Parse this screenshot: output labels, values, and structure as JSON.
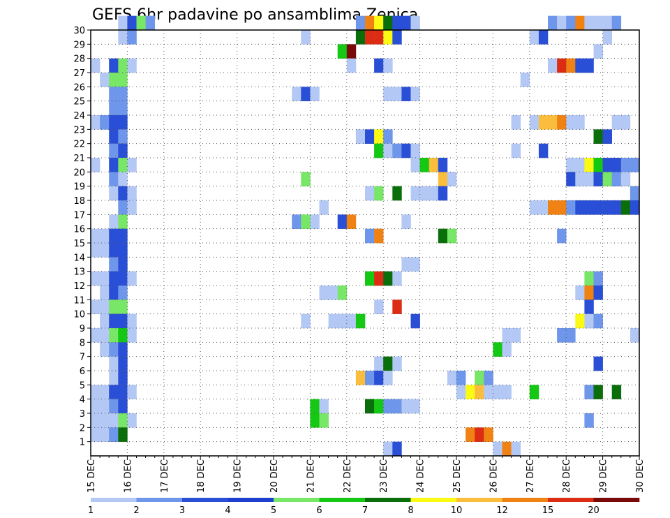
{
  "chart_data": {
    "type": "heatmap",
    "title": "GEFS 6hr padavine po ansamblima Zenica",
    "xlabel": "",
    "ylabel": "",
    "x_ticks": [
      "15 DEC",
      "16 DEC",
      "17 DEC",
      "18 DEC",
      "19 DEC",
      "20 DEC",
      "21 DEC",
      "22 DEC",
      "23 DEC",
      "24 DEC",
      "25 DEC",
      "26 DEC",
      "27 DEC",
      "28 DEC",
      "29 DEC",
      "30 DEC"
    ],
    "y_ticks": [
      "1",
      "2",
      "3",
      "4",
      "5",
      "6",
      "7",
      "8",
      "9",
      "10",
      "11",
      "12",
      "13",
      "14",
      "15",
      "16",
      "17",
      "18",
      "19",
      "20",
      "21",
      "22",
      "23",
      "24",
      "25",
      "26",
      "27",
      "28",
      "29",
      "30"
    ],
    "time_steps_per_day": 4,
    "x_range_days": [
      0,
      15
    ],
    "y_range": [
      0,
      30
    ],
    "grid": true,
    "colorbar": {
      "placement": "bottom",
      "labels": [
        "1",
        "2",
        "3",
        "4",
        "5",
        "6",
        "7",
        "8",
        "10",
        "12",
        "15",
        "20"
      ],
      "colors": [
        "#b4c8f5",
        "#6e96eb",
        "#2a4fd7",
        "#1e3fd0",
        "#78e666",
        "#14c814",
        "#0a6e0a",
        "#fafa14",
        "#fabe3c",
        "#f08214",
        "#dc2d14",
        "#7a0a0a"
      ]
    },
    "cells": [
      [
        30,
        3,
        0
      ],
      [
        30,
        4,
        2
      ],
      [
        30,
        5,
        4
      ],
      [
        30,
        6,
        1
      ],
      [
        30,
        29,
        1
      ],
      [
        30,
        30,
        9
      ],
      [
        30,
        31,
        7
      ],
      [
        30,
        32,
        6
      ],
      [
        30,
        33,
        2
      ],
      [
        30,
        34,
        2
      ],
      [
        30,
        35,
        0
      ],
      [
        30,
        50,
        1
      ],
      [
        30,
        51,
        0
      ],
      [
        30,
        52,
        1
      ],
      [
        30,
        53,
        9
      ],
      [
        30,
        54,
        0
      ],
      [
        30,
        55,
        0
      ],
      [
        30,
        56,
        0
      ],
      [
        30,
        57,
        1
      ],
      [
        29,
        3,
        0
      ],
      [
        29,
        4,
        1
      ],
      [
        29,
        23,
        0
      ],
      [
        29,
        29,
        6
      ],
      [
        29,
        30,
        10
      ],
      [
        29,
        31,
        10
      ],
      [
        29,
        32,
        7
      ],
      [
        29,
        33,
        2
      ],
      [
        29,
        48,
        0
      ],
      [
        29,
        49,
        2
      ],
      [
        29,
        56,
        0
      ],
      [
        28,
        27,
        5
      ],
      [
        28,
        28,
        11
      ],
      [
        28,
        55,
        0
      ],
      [
        27,
        0,
        0
      ],
      [
        27,
        2,
        2
      ],
      [
        27,
        3,
        4
      ],
      [
        27,
        4,
        0
      ],
      [
        27,
        28,
        0
      ],
      [
        27,
        31,
        2
      ],
      [
        27,
        32,
        0
      ],
      [
        27,
        50,
        0
      ],
      [
        27,
        51,
        10
      ],
      [
        27,
        52,
        9
      ],
      [
        27,
        53,
        2
      ],
      [
        27,
        54,
        2
      ],
      [
        26,
        1,
        0
      ],
      [
        26,
        2,
        4
      ],
      [
        26,
        3,
        4
      ],
      [
        26,
        47,
        0
      ],
      [
        25,
        2,
        1
      ],
      [
        25,
        3,
        1
      ],
      [
        25,
        22,
        0
      ],
      [
        25,
        23,
        2
      ],
      [
        25,
        24,
        0
      ],
      [
        25,
        32,
        0
      ],
      [
        25,
        33,
        0
      ],
      [
        25,
        34,
        2
      ],
      [
        25,
        35,
        0
      ],
      [
        24,
        2,
        1
      ],
      [
        24,
        3,
        1
      ],
      [
        23,
        0,
        0
      ],
      [
        23,
        1,
        1
      ],
      [
        23,
        2,
        2
      ],
      [
        23,
        3,
        2
      ],
      [
        23,
        46,
        0
      ],
      [
        23,
        48,
        0
      ],
      [
        23,
        49,
        8
      ],
      [
        23,
        50,
        8
      ],
      [
        23,
        51,
        9
      ],
      [
        23,
        52,
        0
      ],
      [
        23,
        53,
        0
      ],
      [
        23,
        57,
        0
      ],
      [
        23,
        58,
        0
      ],
      [
        22,
        2,
        2
      ],
      [
        22,
        3,
        1
      ],
      [
        22,
        29,
        0
      ],
      [
        22,
        30,
        2
      ],
      [
        22,
        31,
        7
      ],
      [
        22,
        32,
        1
      ],
      [
        22,
        55,
        6
      ],
      [
        22,
        56,
        2
      ],
      [
        21,
        2,
        1
      ],
      [
        21,
        3,
        2
      ],
      [
        21,
        31,
        5
      ],
      [
        21,
        32,
        0
      ],
      [
        21,
        33,
        1
      ],
      [
        21,
        34,
        2
      ],
      [
        21,
        35,
        0
      ],
      [
        21,
        46,
        0
      ],
      [
        21,
        49,
        2
      ],
      [
        20,
        0,
        0
      ],
      [
        20,
        2,
        2
      ],
      [
        20,
        3,
        4
      ],
      [
        20,
        4,
        0
      ],
      [
        20,
        35,
        0
      ],
      [
        20,
        36,
        5
      ],
      [
        20,
        37,
        8
      ],
      [
        20,
        38,
        2
      ],
      [
        20,
        52,
        0
      ],
      [
        20,
        53,
        0
      ],
      [
        20,
        54,
        7
      ],
      [
        20,
        55,
        5
      ],
      [
        20,
        56,
        2
      ],
      [
        20,
        57,
        2
      ],
      [
        20,
        58,
        1
      ],
      [
        20,
        59,
        1
      ],
      [
        19,
        2,
        1
      ],
      [
        19,
        3,
        0
      ],
      [
        19,
        23,
        4
      ],
      [
        19,
        38,
        8
      ],
      [
        19,
        39,
        0
      ],
      [
        19,
        52,
        2
      ],
      [
        19,
        53,
        0
      ],
      [
        19,
        54,
        0
      ],
      [
        19,
        55,
        2
      ],
      [
        19,
        56,
        4
      ],
      [
        19,
        57,
        1
      ],
      [
        19,
        58,
        0
      ],
      [
        18,
        2,
        0
      ],
      [
        18,
        3,
        2
      ],
      [
        18,
        4,
        0
      ],
      [
        18,
        30,
        0
      ],
      [
        18,
        31,
        4
      ],
      [
        18,
        33,
        6
      ],
      [
        18,
        35,
        0
      ],
      [
        18,
        36,
        0
      ],
      [
        18,
        37,
        0
      ],
      [
        18,
        38,
        2
      ],
      [
        18,
        59,
        1
      ],
      [
        17,
        3,
        1
      ],
      [
        17,
        4,
        0
      ],
      [
        17,
        25,
        0
      ],
      [
        17,
        48,
        0
      ],
      [
        17,
        49,
        0
      ],
      [
        17,
        50,
        9
      ],
      [
        17,
        51,
        9
      ],
      [
        17,
        52,
        1
      ],
      [
        17,
        53,
        2
      ],
      [
        17,
        54,
        2
      ],
      [
        17,
        55,
        2
      ],
      [
        17,
        56,
        2
      ],
      [
        17,
        57,
        2
      ],
      [
        17,
        58,
        6
      ],
      [
        17,
        59,
        2
      ],
      [
        16,
        2,
        0
      ],
      [
        16,
        3,
        4
      ],
      [
        16,
        22,
        1
      ],
      [
        16,
        23,
        4
      ],
      [
        16,
        24,
        0
      ],
      [
        16,
        27,
        2
      ],
      [
        16,
        28,
        9
      ],
      [
        16,
        34,
        0
      ],
      [
        15,
        0,
        0
      ],
      [
        15,
        1,
        0
      ],
      [
        15,
        2,
        2
      ],
      [
        15,
        3,
        2
      ],
      [
        15,
        30,
        1
      ],
      [
        15,
        31,
        9
      ],
      [
        15,
        38,
        6
      ],
      [
        15,
        39,
        4
      ],
      [
        15,
        51,
        1
      ],
      [
        14,
        0,
        0
      ],
      [
        14,
        1,
        0
      ],
      [
        14,
        2,
        2
      ],
      [
        14,
        3,
        2
      ],
      [
        13,
        2,
        1
      ],
      [
        13,
        3,
        2
      ],
      [
        13,
        34,
        0
      ],
      [
        13,
        35,
        0
      ],
      [
        12,
        0,
        0
      ],
      [
        12,
        1,
        0
      ],
      [
        12,
        2,
        2
      ],
      [
        12,
        3,
        2
      ],
      [
        12,
        4,
        0
      ],
      [
        12,
        30,
        5
      ],
      [
        12,
        31,
        10
      ],
      [
        12,
        32,
        6
      ],
      [
        12,
        33,
        0
      ],
      [
        12,
        54,
        4
      ],
      [
        12,
        55,
        1
      ],
      [
        11,
        1,
        0
      ],
      [
        11,
        2,
        2
      ],
      [
        11,
        3,
        1
      ],
      [
        11,
        25,
        0
      ],
      [
        11,
        26,
        0
      ],
      [
        11,
        27,
        4
      ],
      [
        11,
        53,
        0
      ],
      [
        11,
        54,
        9
      ],
      [
        11,
        55,
        2
      ],
      [
        10,
        0,
        0
      ],
      [
        10,
        1,
        0
      ],
      [
        10,
        2,
        4
      ],
      [
        10,
        3,
        4
      ],
      [
        10,
        31,
        0
      ],
      [
        10,
        33,
        10
      ],
      [
        10,
        54,
        2
      ],
      [
        9,
        1,
        0
      ],
      [
        9,
        2,
        2
      ],
      [
        9,
        3,
        2
      ],
      [
        9,
        4,
        0
      ],
      [
        9,
        23,
        0
      ],
      [
        9,
        26,
        0
      ],
      [
        9,
        27,
        0
      ],
      [
        9,
        28,
        0
      ],
      [
        9,
        29,
        5
      ],
      [
        9,
        35,
        2
      ],
      [
        9,
        53,
        7
      ],
      [
        9,
        54,
        0
      ],
      [
        9,
        55,
        1
      ],
      [
        8,
        0,
        0
      ],
      [
        8,
        1,
        0
      ],
      [
        8,
        2,
        4
      ],
      [
        8,
        3,
        5
      ],
      [
        8,
        4,
        0
      ],
      [
        8,
        45,
        0
      ],
      [
        8,
        46,
        0
      ],
      [
        8,
        51,
        1
      ],
      [
        8,
        52,
        1
      ],
      [
        8,
        59,
        0
      ],
      [
        7,
        1,
        0
      ],
      [
        7,
        2,
        1
      ],
      [
        7,
        3,
        2
      ],
      [
        7,
        44,
        5
      ],
      [
        7,
        45,
        0
      ],
      [
        6,
        2,
        0
      ],
      [
        6,
        3,
        2
      ],
      [
        6,
        31,
        0
      ],
      [
        6,
        32,
        6
      ],
      [
        6,
        33,
        0
      ],
      [
        6,
        55,
        2
      ],
      [
        5,
        2,
        0
      ],
      [
        5,
        3,
        2
      ],
      [
        5,
        29,
        8
      ],
      [
        5,
        30,
        1
      ],
      [
        5,
        31,
        2
      ],
      [
        5,
        32,
        0
      ],
      [
        5,
        39,
        0
      ],
      [
        5,
        40,
        1
      ],
      [
        5,
        42,
        4
      ],
      [
        5,
        43,
        1
      ],
      [
        4,
        0,
        0
      ],
      [
        4,
        1,
        0
      ],
      [
        4,
        2,
        2
      ],
      [
        4,
        3,
        2
      ],
      [
        4,
        4,
        0
      ],
      [
        4,
        40,
        0
      ],
      [
        4,
        41,
        7
      ],
      [
        4,
        42,
        8
      ],
      [
        4,
        43,
        0
      ],
      [
        4,
        44,
        0
      ],
      [
        4,
        45,
        0
      ],
      [
        4,
        48,
        5
      ],
      [
        4,
        54,
        1
      ],
      [
        4,
        55,
        6
      ],
      [
        4,
        57,
        6
      ],
      [
        3,
        0,
        0
      ],
      [
        3,
        1,
        0
      ],
      [
        3,
        2,
        1
      ],
      [
        3,
        3,
        2
      ],
      [
        3,
        24,
        5
      ],
      [
        3,
        25,
        0
      ],
      [
        3,
        30,
        6
      ],
      [
        3,
        31,
        5
      ],
      [
        3,
        32,
        1
      ],
      [
        3,
        33,
        1
      ],
      [
        3,
        34,
        0
      ],
      [
        3,
        35,
        0
      ],
      [
        2,
        0,
        0
      ],
      [
        2,
        1,
        0
      ],
      [
        2,
        2,
        0
      ],
      [
        2,
        3,
        4
      ],
      [
        2,
        4,
        0
      ],
      [
        2,
        24,
        5
      ],
      [
        2,
        25,
        4
      ],
      [
        2,
        54,
        1
      ],
      [
        1,
        0,
        0
      ],
      [
        1,
        1,
        0
      ],
      [
        1,
        2,
        1
      ],
      [
        1,
        3,
        6
      ],
      [
        1,
        41,
        9
      ],
      [
        1,
        42,
        10
      ],
      [
        1,
        43,
        9
      ],
      [
        0,
        32,
        0
      ],
      [
        0,
        33,
        2
      ],
      [
        0,
        44,
        0
      ],
      [
        0,
        45,
        9
      ],
      [
        0,
        46,
        0
      ]
    ]
  }
}
